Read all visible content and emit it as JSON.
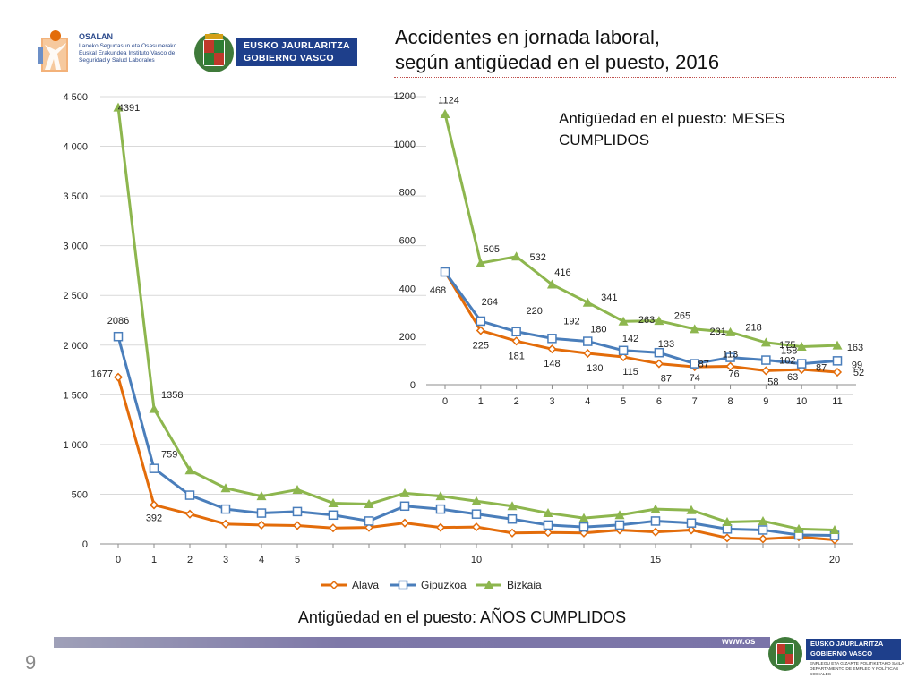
{
  "header": {
    "title_line1": "Accidentes en jornada laboral,",
    "title_line2": "según antigüedad en el puesto, 2016",
    "osalan_name": "OSALAN",
    "osalan_sub": "Laneko Segurtasun eta Osasunerako Euskal Erakundea Instituto Vasco de Seguridad y Salud Laborales",
    "gv_line1": "EUSKO JAURLARITZA",
    "gv_line2": "GOBIERNO VASCO"
  },
  "colors": {
    "alava": "#e36c0a",
    "gipuzkoa": "#4a7ebb",
    "bizkaia": "#8db64e",
    "grid": "#d9d9d9",
    "axis": "#8c8c8c"
  },
  "chart_data": [
    {
      "type": "line",
      "title": "Antigüedad en el puesto: AÑOS CUMPLIDOS",
      "x": [
        0,
        1,
        2,
        3,
        4,
        5,
        6,
        7,
        8,
        9,
        10,
        11,
        12,
        13,
        14,
        15,
        16,
        17,
        18,
        19,
        20
      ],
      "x_tick_labels": [
        "0",
        "1",
        "2",
        "3",
        "4",
        "5",
        "",
        "",
        "",
        "",
        "10",
        "",
        "",
        "",
        "",
        "15",
        "",
        "",
        "",
        "",
        "20"
      ],
      "y_tick_labels": [
        "0",
        "500",
        "1 000",
        "1 500",
        "2 000",
        "2 500",
        "3 000",
        "3 500",
        "4 000",
        "4 500"
      ],
      "ylim": [
        0,
        4500
      ],
      "grid": true,
      "legend_position": "bottom",
      "series": [
        {
          "name": "Alava",
          "values": [
            1677,
            392,
            300,
            200,
            190,
            185,
            160,
            165,
            210,
            165,
            170,
            110,
            115,
            110,
            140,
            120,
            140,
            60,
            50,
            70,
            40
          ],
          "labels": {
            "0": "1677",
            "1": "392"
          }
        },
        {
          "name": "Gipuzkoa",
          "values": [
            2086,
            759,
            490,
            350,
            310,
            325,
            290,
            230,
            380,
            350,
            300,
            250,
            190,
            170,
            190,
            230,
            210,
            150,
            140,
            90,
            85
          ],
          "labels": {
            "0": "2086",
            "1": "759"
          }
        },
        {
          "name": "Bizkaia",
          "values": [
            4391,
            1358,
            740,
            560,
            480,
            545,
            410,
            400,
            510,
            480,
            430,
            380,
            310,
            260,
            290,
            350,
            340,
            220,
            230,
            150,
            140
          ],
          "labels": {
            "0": "4391",
            "1": "1358"
          }
        }
      ]
    },
    {
      "type": "line",
      "title": "Antigüedad en el puesto: MESES CUMPLIDOS",
      "x": [
        0,
        1,
        2,
        3,
        4,
        5,
        6,
        7,
        8,
        9,
        10,
        11
      ],
      "x_tick_labels": [
        "0",
        "1",
        "2",
        "3",
        "4",
        "5",
        "6",
        "7",
        "8",
        "9",
        "10",
        "11"
      ],
      "y_tick_labels": [
        "0",
        "200",
        "400",
        "600",
        "800",
        "1000",
        "1200"
      ],
      "ylim": [
        0,
        1200
      ],
      "grid": false,
      "series": [
        {
          "name": "Alava",
          "values": [
            468,
            225,
            181,
            148,
            130,
            115,
            87,
            74,
            76,
            58,
            63,
            52
          ],
          "labels": [
            "468",
            "225",
            "181",
            "148",
            "130",
            "115",
            "87",
            "74",
            "76",
            "58",
            "63",
            "52"
          ]
        },
        {
          "name": "Gipuzkoa",
          "values": [
            468,
            264,
            220,
            192,
            180,
            142,
            133,
            87,
            113,
            102,
            87,
            99
          ],
          "labels": [
            "",
            "264",
            "220",
            "192",
            "180",
            "142",
            "133",
            "87",
            "113",
            "102",
            "87",
            "99"
          ]
        },
        {
          "name": "Bizkaia",
          "values": [
            1124,
            505,
            532,
            416,
            341,
            263,
            265,
            231,
            218,
            175,
            158,
            163
          ],
          "labels": [
            "1124",
            "505",
            "532",
            "416",
            "341",
            "263",
            "265",
            "231",
            "218",
            "175",
            "158",
            "163"
          ]
        }
      ]
    }
  ],
  "footer": {
    "page_number": "9",
    "url": "www.os",
    "gv_line1": "EUSKO JAURLARITZA",
    "gv_line2": "GOBIERNO VASCO",
    "dept": "ENPLEGU ETA GIZARTE POLITIKETAKO SAILA DEPARTAMENTO DE EMPLEO Y POLÍTICAS SOCIALES"
  }
}
